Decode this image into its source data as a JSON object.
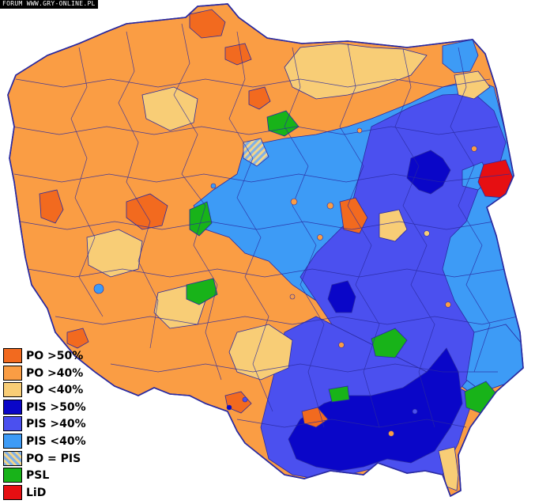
{
  "watermark": "FORUM WWW.GRY-ONLINE.PL",
  "colors": {
    "po_gt50": "#f26a1f",
    "po_gt40": "#fa9d44",
    "po_lt40": "#f8cd76",
    "pis_gt50": "#0a06c8",
    "pis_gt40": "#4b50ef",
    "pis_lt40": "#3d9bf6",
    "psl": "#18b319",
    "lid": "#e60f12",
    "border": "#2a2aa0"
  },
  "legend": [
    {
      "label": "PO >50%",
      "color": "#f26a1f"
    },
    {
      "label": "PO >40%",
      "color": "#fa9d44"
    },
    {
      "label": "PO <40%",
      "color": "#f8cd76"
    },
    {
      "label": "PIS >50%",
      "color": "#0a06c8"
    },
    {
      "label": "PIS >40%",
      "color": "#4b50ef"
    },
    {
      "label": "PIS <40%",
      "color": "#3d9bf6"
    },
    {
      "label": "PO = PIS",
      "color": "hatched"
    },
    {
      "label": "PSL",
      "color": "#18b319"
    },
    {
      "label": "LiD",
      "color": "#e60f12"
    }
  ]
}
